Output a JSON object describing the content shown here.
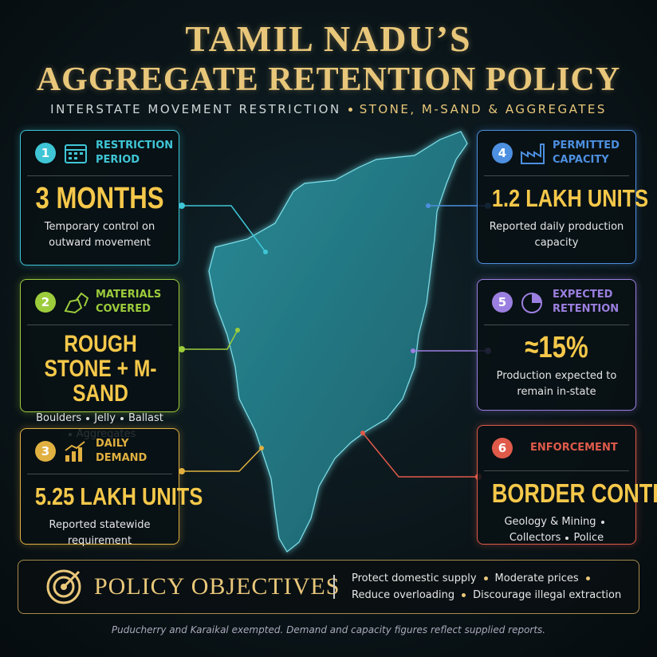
{
  "header": {
    "title_line1": "TAMIL NADU’S",
    "title_line2": "AGGREGATE RETENTION POLICY",
    "subtitle": [
      "INTERSTATE MOVEMENT RESTRICTION",
      "STONE, M-SAND & AGGREGATES"
    ]
  },
  "cards": [
    {
      "number": "1",
      "label": "RESTRICTION PERIOD",
      "value": "3 MONTHS",
      "description": "Temporary control on outward movement"
    },
    {
      "number": "2",
      "label": "MATERIALS COVERED",
      "value": "ROUGH STONE + M-SAND",
      "items": [
        "Boulders",
        "Jelly",
        "Ballast",
        "Aggregates"
      ]
    },
    {
      "number": "3",
      "label": "DAILY DEMAND",
      "value": "5.25 LAKH UNITS",
      "description": "Reported statewide requirement"
    },
    {
      "number": "4",
      "label": "PERMITTED CAPACITY",
      "value": "1.2 LAKH UNITS",
      "description": "Reported daily production capacity"
    },
    {
      "number": "5",
      "label": "EXPECTED RETENTION",
      "value": "≈15%",
      "description": "Production expected to remain in-state"
    },
    {
      "number": "6",
      "label": "ENFORCEMENT",
      "value": "BORDER CONTROL",
      "items": [
        "Geology & Mining",
        "Collectors",
        "Police"
      ]
    }
  ],
  "objectives": {
    "title": "POLICY OBJECTIVES",
    "items": [
      "Protect domestic supply",
      "Moderate prices",
      "Reduce overloading",
      "Discourage illegal extraction"
    ]
  },
  "footer": {
    "note": "Puducherry and Karaikal exempted. Demand and capacity figures reflect supplied reports."
  }
}
